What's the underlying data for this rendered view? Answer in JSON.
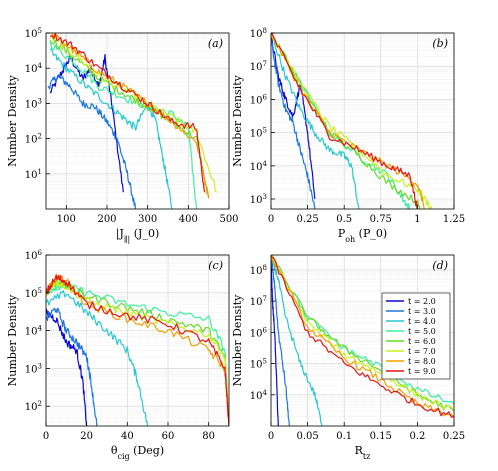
{
  "colors": [
    "#0a0ad2",
    "#1e78dc",
    "#28c8d2",
    "#3cf0a0",
    "#64dc28",
    "#c8f01e",
    "#f0a000",
    "#e61414"
  ],
  "legend": {
    "entries": [
      "t = 2.0",
      "t = 3.0",
      "t = 4.0",
      "t = 5.0",
      "t = 6.0",
      "t = 7.0",
      "t = 8.0",
      "t = 9.0"
    ]
  },
  "chart_data": [
    {
      "type": "line",
      "panel": "(a)",
      "xlabel": "|J_∥| (J_0)",
      "ylabel": "Number Density",
      "xlim": [
        50,
        500
      ],
      "ylim": [
        1,
        100000
      ],
      "yscale": "log",
      "grid": true,
      "xticks": [
        "100",
        "200",
        "300",
        "400",
        "500"
      ],
      "yticks": [
        "10^1",
        "10^2",
        "10^3",
        "10^4",
        "10^5"
      ],
      "series": [
        {
          "x": [
            60,
            90,
            110,
            140,
            160,
            180,
            195,
            215,
            240
          ],
          "y": [
            2000,
            8000,
            20000,
            5000,
            10000,
            3000,
            20000,
            500,
            3
          ]
        },
        {
          "x": [
            55,
            80,
            110,
            140,
            170,
            200,
            225,
            250,
            270
          ],
          "y": [
            3000,
            6000,
            3000,
            1000,
            800,
            300,
            100,
            10,
            1
          ]
        },
        {
          "x": [
            60,
            100,
            150,
            200,
            240,
            270,
            300,
            320,
            340,
            360
          ],
          "y": [
            30000,
            10000,
            3000,
            1000,
            400,
            200,
            1000,
            300,
            20,
            1
          ]
        },
        {
          "x": [
            60,
            120,
            180,
            240,
            300,
            360,
            400,
            420
          ],
          "y": [
            50000,
            15000,
            3000,
            1500,
            800,
            500,
            200,
            1
          ]
        },
        {
          "x": [
            60,
            120,
            180,
            240,
            300,
            360,
            420,
            450
          ],
          "y": [
            70000,
            20000,
            5000,
            2000,
            800,
            300,
            100,
            2
          ]
        },
        {
          "x": [
            60,
            120,
            180,
            240,
            300,
            360,
            420,
            470
          ],
          "y": [
            80000,
            25000,
            6000,
            2500,
            1000,
            400,
            150,
            3
          ]
        },
        {
          "x": [
            60,
            120,
            180,
            240,
            300,
            360,
            420,
            450
          ],
          "y": [
            100000,
            30000,
            8000,
            3000,
            1000,
            300,
            80,
            2
          ]
        },
        {
          "x": [
            60,
            120,
            180,
            240,
            300,
            360,
            420,
            440
          ],
          "y": [
            100000,
            40000,
            10000,
            3000,
            1000,
            300,
            200,
            3
          ]
        }
      ]
    },
    {
      "type": "line",
      "panel": "(b)",
      "xlabel": "P_oh (P_0)",
      "ylabel": "Number Density",
      "xlim": [
        0,
        1.25
      ],
      "ylim": [
        500,
        100000000
      ],
      "yscale": "log",
      "grid": true,
      "xticks": [
        "0",
        "0.25",
        "0.5",
        "0.75",
        "1",
        "1.25"
      ],
      "yticks": [
        "10^3",
        "10^4",
        "10^5",
        "10^6",
        "10^7",
        "10^8"
      ],
      "series": [
        {
          "x": [
            0.0,
            0.05,
            0.1,
            0.15,
            0.2,
            0.25,
            0.3
          ],
          "y": [
            80000000,
            5000000,
            1000000,
            300000,
            3000000,
            100000,
            1000
          ]
        },
        {
          "x": [
            0.0,
            0.05,
            0.1,
            0.15,
            0.2,
            0.25,
            0.3
          ],
          "y": [
            60000000,
            3000000,
            500000,
            200000,
            30000,
            5000,
            500
          ]
        },
        {
          "x": [
            0.0,
            0.1,
            0.2,
            0.3,
            0.4,
            0.5,
            0.55,
            0.6
          ],
          "y": [
            100000000,
            5000000,
            500000,
            100000,
            30000,
            20000,
            10000,
            500
          ]
        },
        {
          "x": [
            0.0,
            0.2,
            0.4,
            0.6,
            0.8,
            0.9,
            0.95
          ],
          "y": [
            100000000,
            3000000,
            100000,
            20000,
            5000,
            1000,
            500
          ]
        },
        {
          "x": [
            0.0,
            0.2,
            0.4,
            0.6,
            0.8,
            1.0,
            1.02
          ],
          "y": [
            100000000,
            3000000,
            100000,
            20000,
            3000,
            800,
            500
          ]
        },
        {
          "x": [
            0.0,
            0.2,
            0.4,
            0.6,
            0.8,
            1.0,
            1.1
          ],
          "y": [
            100000000,
            3000000,
            150000,
            30000,
            5000,
            2000,
            500
          ]
        },
        {
          "x": [
            0.0,
            0.2,
            0.4,
            0.6,
            0.8,
            1.0,
            1.05
          ],
          "y": [
            100000000,
            2000000,
            100000,
            30000,
            10000,
            3000,
            500
          ]
        },
        {
          "x": [
            0.0,
            0.2,
            0.4,
            0.6,
            0.8,
            0.95,
            1.0
          ],
          "y": [
            100000000,
            2000000,
            80000,
            30000,
            10000,
            5000,
            500
          ]
        }
      ]
    },
    {
      "type": "line",
      "panel": "(c)",
      "xlabel": "θ_cig (Deg)",
      "ylabel": "Number Density",
      "xlim": [
        0,
        90
      ],
      "ylim": [
        30,
        1000000
      ],
      "yscale": "log",
      "grid": true,
      "xticks": [
        "0",
        "20",
        "40",
        "60",
        "80"
      ],
      "yticks": [
        "10^2",
        "10^3",
        "10^4",
        "10^5",
        "10^6"
      ],
      "series": [
        {
          "x": [
            0,
            5,
            10,
            15,
            18,
            20
          ],
          "y": [
            30000,
            20000,
            5000,
            3000,
            500,
            30
          ]
        },
        {
          "x": [
            0,
            5,
            10,
            15,
            20,
            22,
            25
          ],
          "y": [
            20000,
            40000,
            10000,
            5000,
            2000,
            500,
            30
          ]
        },
        {
          "x": [
            0,
            10,
            20,
            30,
            40,
            45,
            50
          ],
          "y": [
            50000,
            100000,
            30000,
            10000,
            3000,
            500,
            30
          ]
        },
        {
          "x": [
            0,
            5,
            10,
            20,
            40,
            60,
            80,
            88,
            90
          ],
          "y": [
            100000,
            150000,
            150000,
            100000,
            50000,
            30000,
            20000,
            3000,
            30
          ]
        },
        {
          "x": [
            0,
            5,
            10,
            20,
            40,
            60,
            80,
            88,
            90
          ],
          "y": [
            100000,
            200000,
            150000,
            80000,
            40000,
            20000,
            10000,
            2000,
            30
          ]
        },
        {
          "x": [
            0,
            5,
            10,
            20,
            40,
            60,
            80,
            88,
            90
          ],
          "y": [
            100000,
            200000,
            150000,
            60000,
            30000,
            15000,
            8000,
            2000,
            30
          ]
        },
        {
          "x": [
            0,
            5,
            10,
            20,
            40,
            60,
            80,
            88,
            90
          ],
          "y": [
            100000,
            250000,
            200000,
            50000,
            20000,
            10000,
            3000,
            1000,
            30
          ]
        },
        {
          "x": [
            0,
            5,
            10,
            20,
            40,
            60,
            80,
            88,
            90
          ],
          "y": [
            100000,
            250000,
            200000,
            50000,
            25000,
            15000,
            5000,
            1000,
            30
          ]
        }
      ]
    },
    {
      "type": "line",
      "panel": "(d)",
      "xlabel": "R_tz",
      "ylabel": "Number Density",
      "xlim": [
        0,
        0.25
      ],
      "ylim": [
        1000,
        300000000
      ],
      "yscale": "log",
      "grid": true,
      "xticks": [
        "0",
        "0.05",
        "0.1",
        "0.15",
        "0.2",
        "0.25"
      ],
      "yticks": [
        "10^4",
        "10^5",
        "10^6",
        "10^7",
        "10^8"
      ],
      "legend_position": "top-right",
      "series": [
        {
          "x": [
            0.0,
            0.002,
            0.005,
            0.01
          ],
          "y": [
            300000000,
            10000000,
            1000000,
            1000
          ]
        },
        {
          "x": [
            0.0,
            0.005,
            0.01,
            0.02,
            0.025
          ],
          "y": [
            300000000,
            30000000,
            1000000,
            20000,
            1000
          ]
        },
        {
          "x": [
            0.0,
            0.01,
            0.02,
            0.04,
            0.06,
            0.07
          ],
          "y": [
            300000000,
            50000000,
            3000000,
            100000,
            10000,
            1000
          ]
        },
        {
          "x": [
            0.0,
            0.05,
            0.1,
            0.15,
            0.2,
            0.25
          ],
          "y": [
            300000000,
            3000000,
            300000,
            80000,
            15000,
            5000
          ]
        },
        {
          "x": [
            0.0,
            0.05,
            0.1,
            0.15,
            0.2,
            0.25
          ],
          "y": [
            300000000,
            3000000,
            300000,
            60000,
            10000,
            3000
          ]
        },
        {
          "x": [
            0.0,
            0.05,
            0.1,
            0.15,
            0.2,
            0.25
          ],
          "y": [
            300000000,
            2000000,
            200000,
            50000,
            10000,
            3000
          ]
        },
        {
          "x": [
            0.0,
            0.05,
            0.1,
            0.15,
            0.2,
            0.25
          ],
          "y": [
            300000000,
            1500000,
            150000,
            30000,
            5000,
            2000
          ]
        },
        {
          "x": [
            0.0,
            0.05,
            0.1,
            0.15,
            0.2,
            0.25
          ],
          "y": [
            300000000,
            1000000,
            100000,
            20000,
            5000,
            2000
          ]
        }
      ]
    }
  ]
}
